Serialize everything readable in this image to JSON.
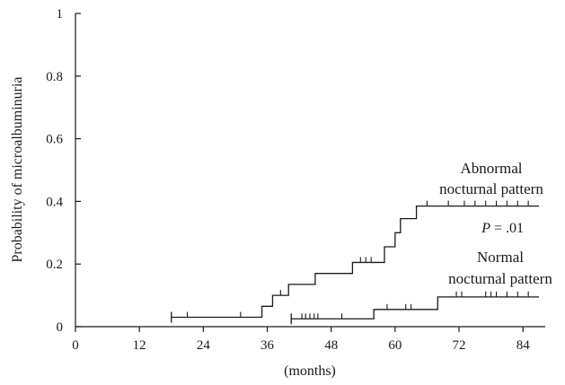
{
  "chart_data": {
    "type": "line",
    "subtype": "kaplan-meier step curves",
    "title": "",
    "xlabel": "(months)",
    "ylabel": "Probability of microalbuminuria",
    "xlim": [
      0,
      87
    ],
    "ylim": [
      0,
      1
    ],
    "xticks": [
      "0",
      "12",
      "24",
      "36",
      "48",
      "60",
      "72",
      "84"
    ],
    "yticks": [
      "0",
      "0.2",
      "0.4",
      "0.6",
      "0.8",
      "1"
    ],
    "grid": false,
    "series": [
      {
        "name": "Abnormal nocturnal pattern",
        "color": "#1a1a1a",
        "steps": [
          [
            18,
            0.03
          ],
          [
            35,
            0.065
          ],
          [
            37,
            0.1
          ],
          [
            40,
            0.135
          ],
          [
            45,
            0.17
          ],
          [
            52,
            0.205
          ],
          [
            58,
            0.255
          ],
          [
            60,
            0.3
          ],
          [
            61,
            0.345
          ],
          [
            64,
            0.385
          ],
          [
            87,
            0.385
          ]
        ],
        "censored": [
          21,
          31,
          38.5,
          53.5,
          54.5,
          55.5,
          66,
          70,
          73,
          75,
          77,
          79,
          81,
          83,
          85
        ],
        "start_tick": true
      },
      {
        "name": "Normal nocturnal pattern",
        "color": "#1a1a1a",
        "steps": [
          [
            40.5,
            0.025
          ],
          [
            56,
            0.055
          ],
          [
            68,
            0.095
          ],
          [
            87,
            0.095
          ]
        ],
        "censored": [
          42.5,
          43.2,
          44,
          44.8,
          45.5,
          50,
          58.5,
          62,
          63,
          71.5,
          72.5,
          77,
          78,
          79,
          81,
          83,
          85
        ],
        "start_tick": true
      }
    ],
    "annotations": {
      "abnormal_line1": "Abnormal",
      "abnormal_line2": "nocturnal pattern",
      "normal_line1": "Normal",
      "normal_line2": "nocturnal pattern",
      "p_symbol": "P",
      "p_rest": " = .01"
    }
  }
}
